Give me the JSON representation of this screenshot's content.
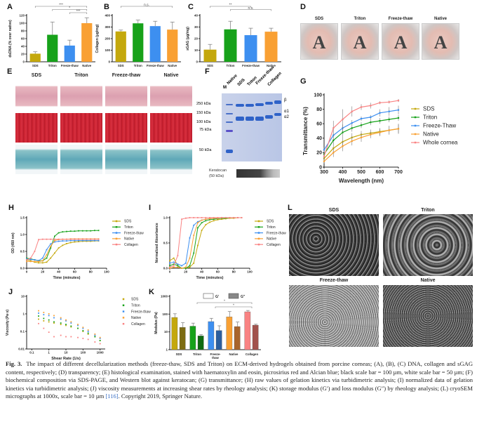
{
  "panel_labels": [
    "A",
    "B",
    "C",
    "D",
    "E",
    "F",
    "G",
    "H",
    "I",
    "J",
    "K",
    "L"
  ],
  "groups": [
    "SDS",
    "Triton",
    "Freeze-thaw",
    "Native"
  ],
  "colors": {
    "SDS": "#c4a80c",
    "Triton": "#17a21a",
    "Freeze": "#3d8ff0",
    "Native": "#f9a033",
    "Collagen": "#f98383",
    "SDS_dark": "#7c6c12",
    "Triton_dark": "#0f6a10",
    "Freeze_dark": "#2b5e9e",
    "Native_dark": "#a8642c",
    "Collagen_dark": "#a2524c"
  },
  "panel_D": {
    "headers": [
      "SDS",
      "Triton",
      "Freeze-thaw",
      "Native"
    ],
    "letter": "A"
  },
  "panel_E": {
    "headers": [
      "SDS",
      "Triton",
      "Freeze-thaw",
      "Native"
    ]
  },
  "panel_F": {
    "lanes": [
      "M",
      "Native",
      "SDS",
      "Triton",
      "Freeze-thaw",
      "Collagen"
    ],
    "markers": [
      "250 kDa",
      "150 kDa",
      "100 kDa",
      "75 kDa",
      "50 kDa"
    ],
    "chains": [
      "β",
      "α1",
      "α2"
    ],
    "blot_label": "Keratocan",
    "blot_size": "(50 kDa)"
  },
  "panel_L": {
    "headers": [
      "SDS",
      "Triton",
      "Freeze-thaw",
      "Native"
    ]
  },
  "chart_data": [
    {
      "id": "A",
      "type": "bar",
      "categories": [
        "SDS",
        "Triton",
        "Freeze-thaw",
        "Native"
      ],
      "values": [
        21,
        70,
        42,
        100
      ],
      "errors": [
        5,
        33,
        14,
        14
      ],
      "ylabel": "dsDNA (% over native)",
      "ylim": [
        0,
        120
      ],
      "yticks": [
        0,
        20,
        40,
        60,
        80,
        100,
        120
      ],
      "annotations": [
        {
          "from": 0,
          "to": 3,
          "text": "***"
        },
        {
          "from": 1,
          "to": 3,
          "text": "*"
        },
        {
          "from": 2,
          "to": 3,
          "text": "***"
        }
      ]
    },
    {
      "id": "B",
      "type": "bar",
      "categories": [
        "SDS",
        "Triton",
        "Freeze-thaw",
        "Native"
      ],
      "values": [
        262,
        332,
        308,
        278
      ],
      "errors": [
        12,
        28,
        42,
        65
      ],
      "ylabel": "Collagen (µg/mg)",
      "ylim": [
        0,
        400
      ],
      "yticks": [
        0,
        100,
        200,
        300,
        400
      ],
      "annotations": [
        {
          "from": 0,
          "to": 3,
          "text": "n.s."
        }
      ]
    },
    {
      "id": "C",
      "type": "bar",
      "categories": [
        "SDS",
        "Triton",
        "Freeze-thaw",
        "Native"
      ],
      "values": [
        10.5,
        28,
        23,
        26
      ],
      "errors": [
        4.5,
        7,
        6,
        3
      ],
      "ylabel": "sGAG (µg/mg)",
      "ylim": [
        0,
        40
      ],
      "yticks": [
        0,
        10,
        20,
        30,
        40
      ],
      "annotations": [
        {
          "from": 0,
          "to": 2,
          "text": "**"
        },
        {
          "from": 1,
          "to": 3,
          "text": "n.s."
        }
      ]
    },
    {
      "id": "G",
      "type": "line",
      "xlabel": "Wavelength (nm)",
      "ylabel": "Transmittance (%)",
      "xlim": [
        300,
        700
      ],
      "ylim": [
        0,
        100
      ],
      "xticks": [
        300,
        400,
        500,
        600,
        700
      ],
      "yticks": [
        0,
        20,
        40,
        60,
        80,
        100
      ],
      "x": [
        300,
        350,
        400,
        450,
        500,
        550,
        600,
        650,
        700
      ],
      "series": [
        {
          "name": "SDS",
          "color": "SDS",
          "values": [
            12,
            26,
            35,
            41,
            45,
            47,
            49,
            51,
            53
          ],
          "err": [
            4,
            8,
            7,
            6,
            5,
            5,
            5,
            6,
            7
          ]
        },
        {
          "name": "Triton",
          "color": "Triton",
          "values": [
            18,
            37,
            48,
            54,
            58,
            62,
            64,
            66,
            68
          ],
          "err": [
            4,
            6,
            6,
            5,
            4,
            4,
            4,
            4,
            4
          ]
        },
        {
          "name": "Freeze-Thaw",
          "color": "Freeze",
          "values": [
            24,
            44,
            54,
            61,
            67,
            69,
            75,
            77,
            79
          ],
          "err": [
            3,
            6,
            5,
            4,
            3,
            3,
            5,
            6,
            6
          ]
        },
        {
          "name": "Native",
          "color": "Native",
          "values": [
            8,
            20,
            29,
            36,
            41,
            45,
            48,
            51,
            53
          ],
          "err": [
            3,
            6,
            7,
            6,
            6,
            5,
            5,
            6,
            6
          ]
        },
        {
          "name": "Whole cornea",
          "color": "Collagen",
          "values": [
            15,
            54,
            66,
            77,
            83,
            85,
            89,
            90,
            92
          ],
          "err": [
            5,
            10,
            14,
            7,
            4,
            4,
            2,
            2,
            2
          ]
        }
      ]
    },
    {
      "id": "H",
      "type": "line",
      "xlabel": "Time (minutes)",
      "ylabel": "OD (450 nm)",
      "xlim": [
        0,
        100
      ],
      "ylim": [
        0,
        1.5
      ],
      "xticks": [
        0,
        20,
        40,
        60,
        80,
        100
      ],
      "yticks": [
        0,
        0.5,
        1.0,
        1.5
      ],
      "ytick_labels": [
        "0.0",
        "0.5",
        "1.0",
        "1.5"
      ],
      "x": [
        0,
        5,
        10,
        15,
        20,
        25,
        30,
        35,
        40,
        45,
        50,
        55,
        60,
        65,
        70,
        75,
        80,
        85,
        90
      ],
      "series": [
        {
          "name": "SDS",
          "color": "SDS",
          "values": [
            0.25,
            0.22,
            0.18,
            0.16,
            0.16,
            0.18,
            0.3,
            0.45,
            0.6,
            0.68,
            0.73,
            0.76,
            0.78,
            0.79,
            0.8,
            0.8,
            0.8,
            0.81,
            0.81
          ]
        },
        {
          "name": "Triton",
          "color": "Triton",
          "values": [
            0.3,
            0.28,
            0.25,
            0.22,
            0.22,
            0.3,
            0.6,
            0.95,
            1.05,
            1.08,
            1.09,
            1.1,
            1.1,
            1.11,
            1.11,
            1.11,
            1.11,
            1.12,
            1.12
          ]
        },
        {
          "name": "Freeze-thaw",
          "color": "Freeze",
          "values": [
            0.28,
            0.26,
            0.25,
            0.23,
            0.3,
            0.55,
            0.72,
            0.78,
            0.8,
            0.81,
            0.81,
            0.82,
            0.82,
            0.82,
            0.82,
            0.82,
            0.82,
            0.82,
            0.82
          ]
        },
        {
          "name": "Native",
          "color": "Native",
          "values": [
            0.2,
            0.2,
            0.2,
            0.2,
            0.22,
            0.4,
            0.65,
            0.82,
            0.85,
            0.86,
            0.86,
            0.87,
            0.87,
            0.87,
            0.87,
            0.87,
            0.87,
            0.87,
            0.87
          ]
        },
        {
          "name": "Collagen",
          "color": "Collagen",
          "values": [
            0.25,
            0.3,
            0.5,
            0.85,
            0.86,
            0.86,
            0.86,
            0.86,
            0.86,
            0.86,
            0.86,
            0.86,
            0.86,
            0.86,
            0.86,
            0.86,
            0.86,
            0.86,
            0.86
          ]
        }
      ]
    },
    {
      "id": "I",
      "type": "line",
      "xlabel": "Time (minutes)",
      "ylabel": "Normalized Absorbance",
      "xlim": [
        0,
        100
      ],
      "ylim": [
        0,
        1.0
      ],
      "xticks": [
        0,
        20,
        40,
        60,
        80,
        100
      ],
      "yticks": [
        0,
        0.5,
        1.0
      ],
      "ytick_labels": [
        "0.0",
        "0.5",
        "1.0"
      ],
      "x": [
        0,
        5,
        10,
        15,
        20,
        25,
        30,
        35,
        40,
        45,
        50,
        55,
        60,
        65,
        70,
        75,
        80,
        85,
        90
      ],
      "series": [
        {
          "name": "SDS",
          "color": "SDS",
          "values": [
            0.15,
            0.2,
            0.05,
            0.0,
            0.0,
            0.02,
            0.1,
            0.45,
            0.75,
            0.86,
            0.91,
            0.94,
            0.96,
            0.97,
            0.98,
            0.99,
            0.99,
            1.0,
            1.0
          ]
        },
        {
          "name": "Triton",
          "color": "Triton",
          "values": [
            0.05,
            0.08,
            0.05,
            0.0,
            0.0,
            0.05,
            0.3,
            0.8,
            0.9,
            0.94,
            0.96,
            0.97,
            0.98,
            0.99,
            0.99,
            1.0,
            1.0,
            1.0,
            1.0
          ]
        },
        {
          "name": "Freeze-thaw",
          "color": "Freeze",
          "values": [
            0.1,
            0.12,
            0.08,
            0.05,
            0.1,
            0.6,
            0.85,
            0.92,
            0.95,
            0.97,
            0.98,
            0.99,
            0.99,
            1.0,
            1.0,
            1.0,
            1.0,
            1.0,
            1.0
          ]
        },
        {
          "name": "Native",
          "color": "Native",
          "values": [
            0.0,
            0.02,
            0.02,
            0.0,
            0.02,
            0.2,
            0.65,
            0.9,
            0.95,
            0.97,
            0.98,
            0.99,
            0.99,
            1.0,
            1.0,
            1.0,
            1.0,
            1.0,
            1.0
          ]
        },
        {
          "name": "Collagen",
          "color": "Collagen",
          "values": [
            0.02,
            0.05,
            0.25,
            0.97,
            0.99,
            1.0,
            1.0,
            1.0,
            1.0,
            1.0,
            1.0,
            1.0,
            1.0,
            1.0,
            1.0,
            1.0,
            1.0,
            1.0,
            1.0
          ]
        }
      ]
    },
    {
      "id": "J",
      "type": "scatter",
      "xlabel": "Shear Rate (1/s)",
      "ylabel": "Viscosity (Pa·s)",
      "xscale": "log",
      "yscale": "log",
      "xlim": [
        0.05,
        2000
      ],
      "ylim": [
        0.01,
        10
      ],
      "xticks": [
        0.1,
        1,
        10,
        100,
        1000
      ],
      "xtick_labels": [
        "0.1",
        "1",
        "10",
        "100",
        "1000"
      ],
      "yticks": [
        0.01,
        0.1,
        1,
        10
      ],
      "ytick_labels": [
        "0.01",
        "0.1",
        "1",
        "10"
      ],
      "x": [
        0.25,
        0.5,
        1,
        2,
        5,
        10,
        20,
        50,
        100,
        200,
        500,
        1000
      ],
      "series": [
        {
          "name": "SDS",
          "color": "SDS",
          "values": [
            0.5,
            0.4,
            0.35,
            0.3,
            0.25,
            0.22,
            0.18,
            0.15,
            0.1,
            0.07,
            0.05,
            0.03
          ]
        },
        {
          "name": "Triton",
          "color": "Triton",
          "values": [
            0.75,
            0.55,
            0.45,
            0.35,
            0.3,
            0.25,
            0.2,
            0.15,
            0.11,
            0.08,
            0.05,
            0.03
          ]
        },
        {
          "name": "Freeze-thaw",
          "color": "Freeze",
          "values": [
            1.1,
            0.9,
            0.8,
            0.6,
            0.5,
            0.4,
            0.3,
            0.22,
            0.15,
            0.1,
            0.06,
            0.04
          ]
        },
        {
          "name": "Native",
          "color": "Native",
          "values": [
            1.5,
            1.2,
            1.0,
            0.8,
            0.6,
            0.45,
            0.35,
            0.25,
            0.17,
            0.12,
            0.07,
            0.045
          ]
        },
        {
          "name": "Collagen",
          "color": "Collagen",
          "values": [
            0.28,
            0.15,
            0.09,
            0.05,
            0.06,
            0.05,
            0.05,
            0.045,
            0.04,
            0.035,
            0.025,
            0.02
          ]
        }
      ]
    },
    {
      "id": "K",
      "type": "bar",
      "yscale": "log",
      "ylabel": "Modulus (Pa)",
      "ylim": [
        1,
        1000
      ],
      "yticks": [
        1,
        10,
        100,
        1000
      ],
      "ytick_labels": [
        "1",
        "10",
        "100",
        "1000"
      ],
      "categories": [
        "SDS",
        "Triton",
        "Freeze-\nthaw",
        "Native",
        "Collagen"
      ],
      "series": [
        {
          "name": "G′",
          "values": [
            65,
            21,
            38,
            70,
            135
          ],
          "errors": [
            40,
            10,
            20,
            70,
            25
          ]
        },
        {
          "name": "G″",
          "values": [
            18,
            6,
            12,
            20,
            24
          ],
          "errors": [
            15,
            1,
            10,
            16,
            3
          ]
        }
      ],
      "annotations": [
        {
          "from": 1,
          "to": 4,
          "text": "*"
        },
        {
          "from": 2,
          "to": 4,
          "text": "*"
        }
      ]
    }
  ],
  "caption": {
    "fig": "Fig. 3.",
    "text": "The impact of different decellularization methods (freeze-thaw, SDS and Triton) on ECM-derived hydrogels obtained from porcine corneas; (A), (B), (C) DNA, collagen and sGAG content, respectively; (D) transparency; (E) histological examination, stained with haematoxylin and eosin, picrosirius red and Alcian blue; black scale bar = 100 µm, white scale bar = 50 µm; (F) biochemical composition via SDS-PAGE, and Western blot against keratocan; (G) transmittance; (H) raw values of gelation kinetics via turbidimetric analysis; (I) normalized data of gelation kinetics via turbidimetric analysis; (J) viscosity measurements at increasing shear rates by rheology analysis; (K) storage modulus (G′) and loss modulus (G″) by rheology analysis; (L) cryoSEM micrographs at 1000x, scale bar = 10 µm ",
    "ref": "[116]",
    "tail": ". Copyright 2019, Springer Nature."
  }
}
